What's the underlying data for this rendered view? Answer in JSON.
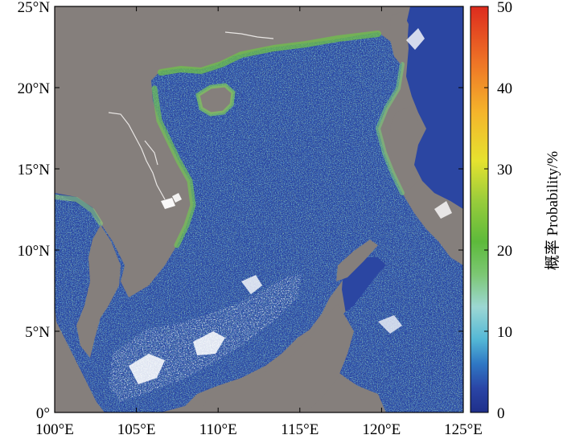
{
  "map": {
    "type": "geographic-heatmap",
    "region": "South China Sea",
    "lon_range": [
      100,
      125
    ],
    "lat_range": [
      0,
      25
    ],
    "x_ticks": [
      "100°E",
      "105°E",
      "110°E",
      "115°E",
      "120°E",
      "125°E"
    ],
    "y_ticks": [
      "0°",
      "5°N",
      "10°N",
      "15°N",
      "20°N",
      "25°N"
    ],
    "land_color": "#857f7c",
    "no_data_color": "#ffffff"
  },
  "colorbar": {
    "title": "概率 Probability/%",
    "min": 0,
    "max": 50,
    "ticks": [
      "0",
      "10",
      "20",
      "30",
      "40",
      "50"
    ],
    "colors": [
      "#1f2f8a",
      "#2a5fb8",
      "#3f9bd0",
      "#6ccfd6",
      "#9ed6c9",
      "#8ccc6a",
      "#5fbc3a",
      "#a9d23c",
      "#f0e52e",
      "#f5b52b",
      "#ef7a27",
      "#e0301f"
    ]
  }
}
